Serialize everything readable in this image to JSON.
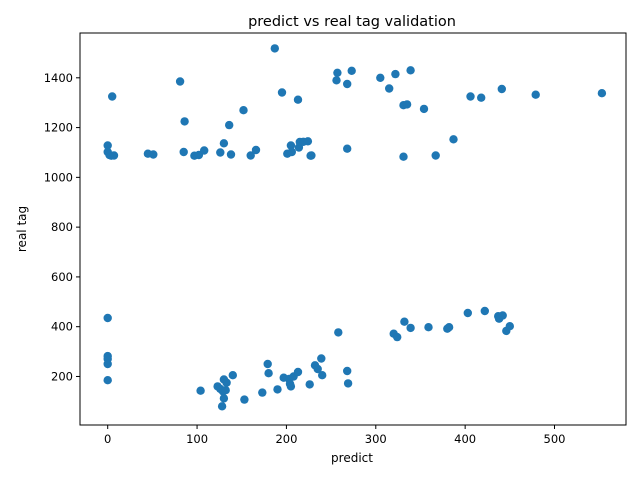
{
  "chart_data": {
    "type": "scatter",
    "title": "predict vs real tag validation",
    "xlabel": "predict",
    "ylabel": "real tag",
    "xlim": [
      -31,
      580
    ],
    "ylim": [
      5,
      1580
    ],
    "xticks": [
      0,
      100,
      200,
      300,
      400,
      500
    ],
    "yticks": [
      200,
      400,
      600,
      800,
      1000,
      1200,
      1400
    ],
    "grid": false,
    "marker_color": "#1f77b4",
    "series": [
      {
        "points": [
          [
            187,
            1518
          ],
          [
            257,
            1420
          ],
          [
            273,
            1428
          ],
          [
            339,
            1430
          ],
          [
            322,
            1415
          ],
          [
            305,
            1400
          ],
          [
            256,
            1390
          ],
          [
            268,
            1375
          ],
          [
            81,
            1385
          ],
          [
            315,
            1357
          ],
          [
            331,
            1290
          ],
          [
            335,
            1293
          ],
          [
            195,
            1341
          ],
          [
            213,
            1312
          ],
          [
            5,
            1325
          ],
          [
            406,
            1325
          ],
          [
            418,
            1320
          ],
          [
            441,
            1355
          ],
          [
            479,
            1332
          ],
          [
            553,
            1338
          ],
          [
            354,
            1275
          ],
          [
            152,
            1270
          ],
          [
            86,
            1225
          ],
          [
            136,
            1210
          ],
          [
            0,
            1128
          ],
          [
            0,
            1102
          ],
          [
            2,
            1090
          ],
          [
            4,
            1087
          ],
          [
            7,
            1088
          ],
          [
            45,
            1095
          ],
          [
            51,
            1092
          ],
          [
            85,
            1102
          ],
          [
            97,
            1087
          ],
          [
            102,
            1090
          ],
          [
            108,
            1108
          ],
          [
            126,
            1100
          ],
          [
            130,
            1137
          ],
          [
            138,
            1092
          ],
          [
            160,
            1088
          ],
          [
            166,
            1110
          ],
          [
            201,
            1095
          ],
          [
            205,
            1128
          ],
          [
            206,
            1102
          ],
          [
            214,
            1120
          ],
          [
            215,
            1142
          ],
          [
            219,
            1143
          ],
          [
            224,
            1145
          ],
          [
            227,
            1087
          ],
          [
            228,
            1088
          ],
          [
            268,
            1115
          ],
          [
            331,
            1083
          ],
          [
            367,
            1088
          ],
          [
            387,
            1153
          ],
          [
            0,
            435
          ],
          [
            0,
            282
          ],
          [
            0,
            270
          ],
          [
            0,
            250
          ],
          [
            0,
            185
          ],
          [
            258,
            377
          ],
          [
            320,
            372
          ],
          [
            324,
            358
          ],
          [
            332,
            420
          ],
          [
            339,
            395
          ],
          [
            359,
            398
          ],
          [
            380,
            392
          ],
          [
            382,
            398
          ],
          [
            403,
            455
          ],
          [
            422,
            463
          ],
          [
            437,
            442
          ],
          [
            438,
            432
          ],
          [
            442,
            445
          ],
          [
            446,
            383
          ],
          [
            450,
            402
          ],
          [
            104,
            143
          ],
          [
            123,
            160
          ],
          [
            126,
            150
          ],
          [
            128,
            80
          ],
          [
            129,
            140
          ],
          [
            130,
            112
          ],
          [
            130,
            188
          ],
          [
            132,
            145
          ],
          [
            133,
            175
          ],
          [
            140,
            205
          ],
          [
            153,
            107
          ],
          [
            173,
            135
          ],
          [
            179,
            250
          ],
          [
            180,
            213
          ],
          [
            190,
            148
          ],
          [
            197,
            195
          ],
          [
            203,
            190
          ],
          [
            204,
            170
          ],
          [
            205,
            160
          ],
          [
            208,
            200
          ],
          [
            213,
            218
          ],
          [
            226,
            168
          ],
          [
            232,
            245
          ],
          [
            235,
            230
          ],
          [
            239,
            272
          ],
          [
            240,
            205
          ],
          [
            268,
            222
          ],
          [
            269,
            172
          ]
        ]
      }
    ]
  }
}
